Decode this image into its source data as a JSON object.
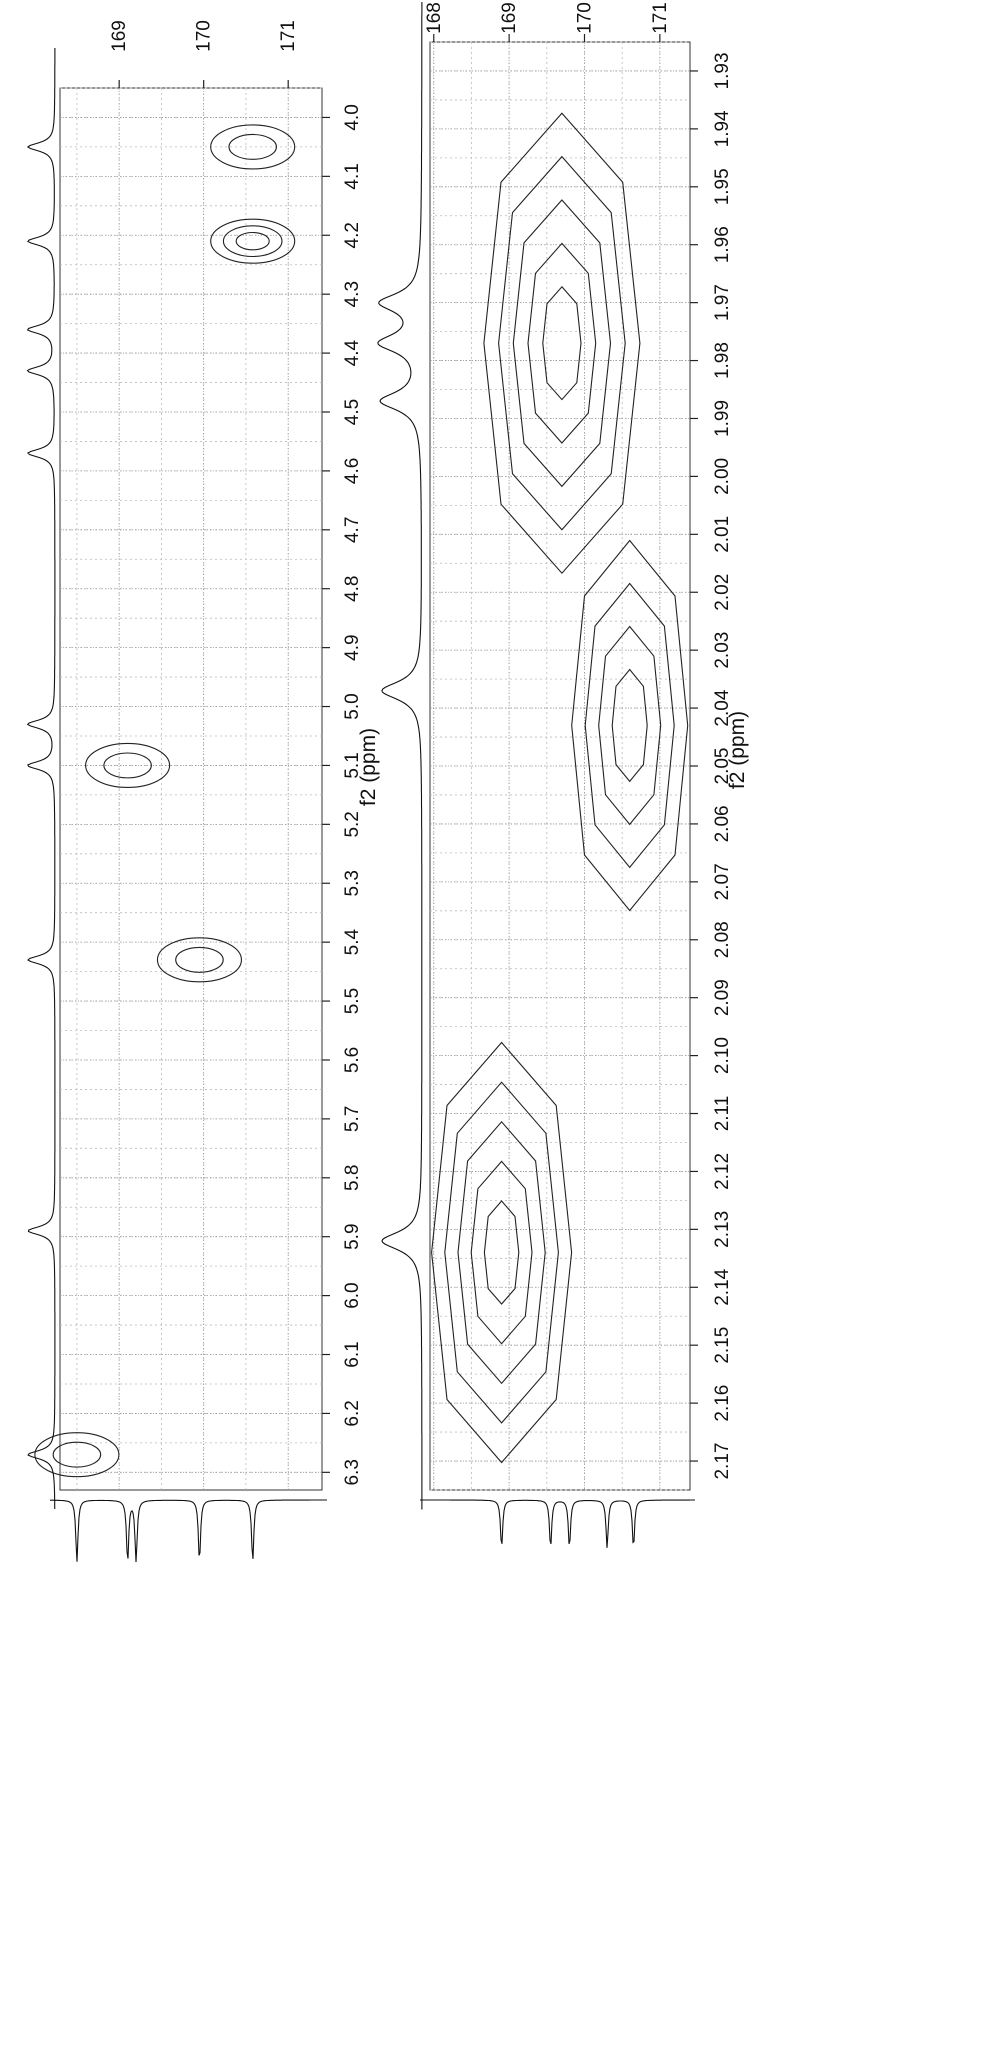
{
  "chart_data": [
    {
      "type": "contour",
      "title": "",
      "f2_axis": {
        "label": "f2 (ppm)",
        "range": [
          3.95,
          6.33
        ],
        "ticks": [
          "4.0",
          "4.1",
          "4.2",
          "4.3",
          "4.4",
          "4.5",
          "4.6",
          "4.7",
          "4.8",
          "4.9",
          "5.0",
          "5.1",
          "5.2",
          "5.3",
          "5.4",
          "5.5",
          "5.6",
          "5.7",
          "5.8",
          "5.9",
          "6.0",
          "6.1",
          "6.2",
          "6.3"
        ]
      },
      "f1_axis": {
        "label": "",
        "range": [
          168.3,
          171.4
        ],
        "ticks": [
          "169",
          "170",
          "171"
        ]
      },
      "grid": true,
      "cross_peaks": [
        {
          "f2": 4.05,
          "f1": 170.58,
          "levels": 2
        },
        {
          "f2": 4.21,
          "f1": 170.58,
          "levels": 3
        },
        {
          "f2": 5.1,
          "f1": 169.1,
          "levels": 2
        },
        {
          "f2": 5.43,
          "f1": 169.95,
          "levels": 2
        },
        {
          "f2": 6.27,
          "f1": 168.5,
          "levels": 2
        }
      ],
      "proton_trace_peaks": [
        4.05,
        4.21,
        4.36,
        4.43,
        4.57,
        5.03,
        5.1,
        5.43,
        5.89,
        6.27
      ],
      "carbon_trace_peaks": [
        168.5,
        169.1,
        169.2,
        169.95,
        170.58
      ]
    },
    {
      "type": "contour",
      "title": "",
      "f2_axis": {
        "label": "f2 (ppm)",
        "range": [
          1.925,
          2.175
        ],
        "ticks": [
          "1.93",
          "1.94",
          "1.95",
          "1.96",
          "1.97",
          "1.98",
          "1.99",
          "2.00",
          "2.01",
          "2.02",
          "2.03",
          "2.04",
          "2.05",
          "2.06",
          "2.07",
          "2.08",
          "2.09",
          "2.10",
          "2.11",
          "2.12",
          "2.13",
          "2.14",
          "2.15",
          "2.16",
          "2.17"
        ]
      },
      "f1_axis": {
        "label": "",
        "range": [
          167.95,
          171.4
        ],
        "ticks": [
          "168",
          "169",
          "170",
          "171"
        ]
      },
      "grid": true,
      "cross_peaks": [
        {
          "f2": 1.977,
          "f1": 169.7,
          "levels": 5
        },
        {
          "f2": 2.043,
          "f1": 170.6,
          "levels": 4
        },
        {
          "f2": 2.134,
          "f1": 168.9,
          "levels": 5
        }
      ],
      "proton_trace_peaks": [
        1.97,
        1.977,
        1.987,
        2.037,
        2.132
      ],
      "carbon_trace_peaks": [
        168.9,
        169.55,
        169.8,
        170.3,
        170.65
      ]
    }
  ]
}
